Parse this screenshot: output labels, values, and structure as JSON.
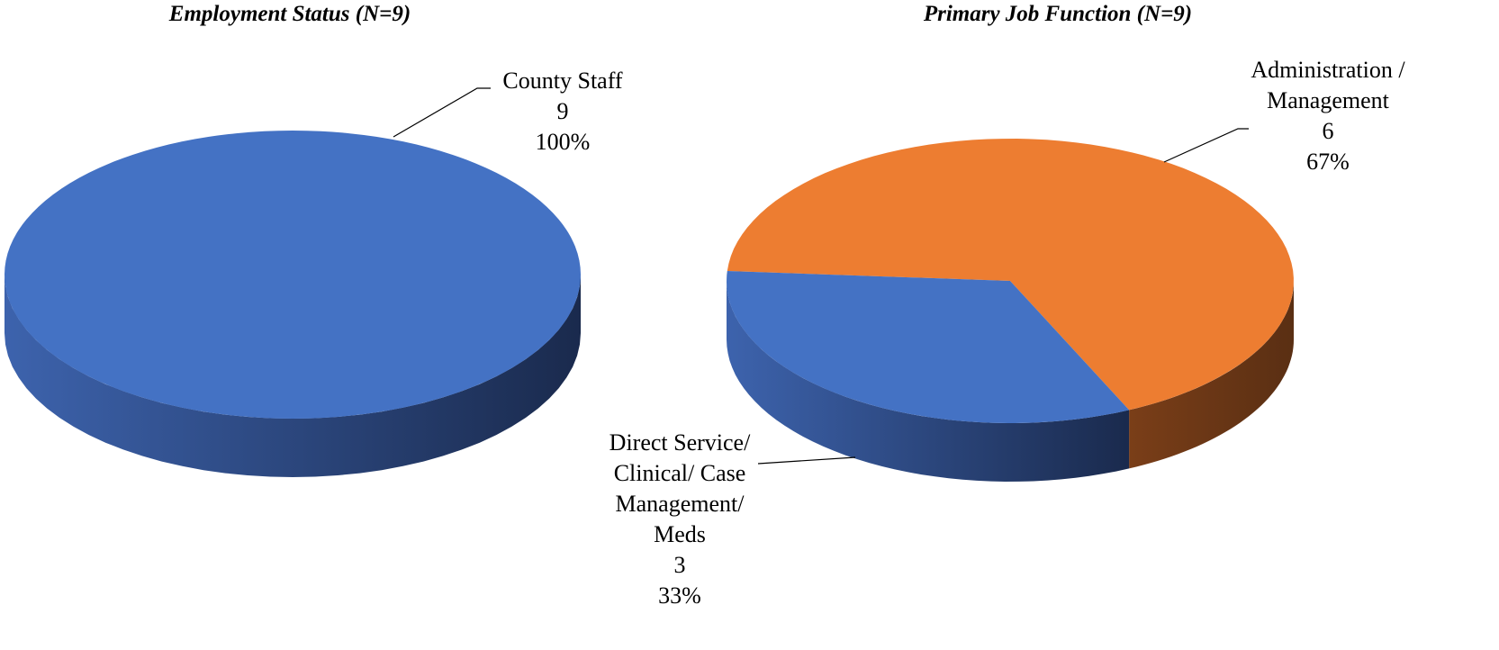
{
  "chart_data": [
    {
      "type": "pie3d",
      "title": "Employment Status (N=9)",
      "categories": [
        "County Staff"
      ],
      "values": [
        9
      ],
      "percentages": [
        100
      ],
      "percentage_labels": [
        "100%"
      ],
      "colors": [
        "#4472c4"
      ]
    },
    {
      "type": "pie3d",
      "title": "Primary Job Function (N=9)",
      "categories": [
        "Administration / Management",
        "Direct Service/ Clinical/ Case Management/ Meds"
      ],
      "values": [
        6,
        3
      ],
      "percentages": [
        67,
        33
      ],
      "percentage_labels": [
        "67%",
        "33%"
      ],
      "colors": [
        "#ed7d31",
        "#4472c4"
      ]
    }
  ]
}
